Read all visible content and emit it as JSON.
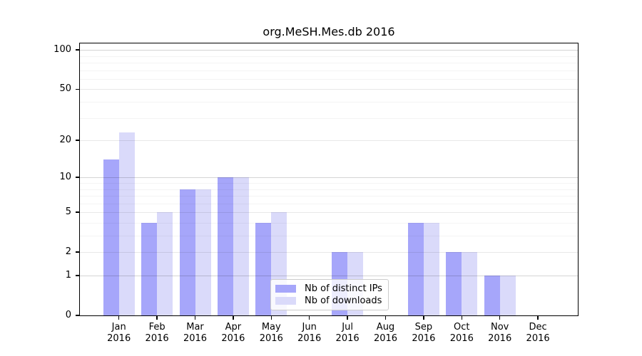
{
  "chart_data": {
    "type": "bar",
    "title": "org.MeSH.Mes.db 2016",
    "xlabel": "",
    "ylabel": "",
    "yscale": "log1p",
    "ylim": [
      0,
      112
    ],
    "yticks": [
      0,
      1,
      2,
      5,
      10,
      20,
      50,
      100
    ],
    "minor_yticks": [
      3,
      4,
      6,
      7,
      8,
      9,
      30,
      40,
      60,
      70,
      80,
      90
    ],
    "grid": "horizontal",
    "months": [
      "Jan",
      "Feb",
      "Mar",
      "Apr",
      "May",
      "Jun",
      "Jul",
      "Aug",
      "Sep",
      "Oct",
      "Nov",
      "Dec"
    ],
    "year": "2016",
    "series": [
      {
        "name": "Nb of distinct IPs",
        "color": "#a6a6fa",
        "values": [
          14,
          4,
          8,
          10,
          4,
          0,
          2,
          0,
          4,
          2,
          1,
          0
        ]
      },
      {
        "name": "Nb of downloads",
        "color": "#dadafa",
        "values": [
          23,
          5,
          8,
          10,
          5,
          0,
          2,
          0,
          4,
          2,
          1,
          0
        ]
      }
    ],
    "legend_position": "inside-bottom-center"
  }
}
